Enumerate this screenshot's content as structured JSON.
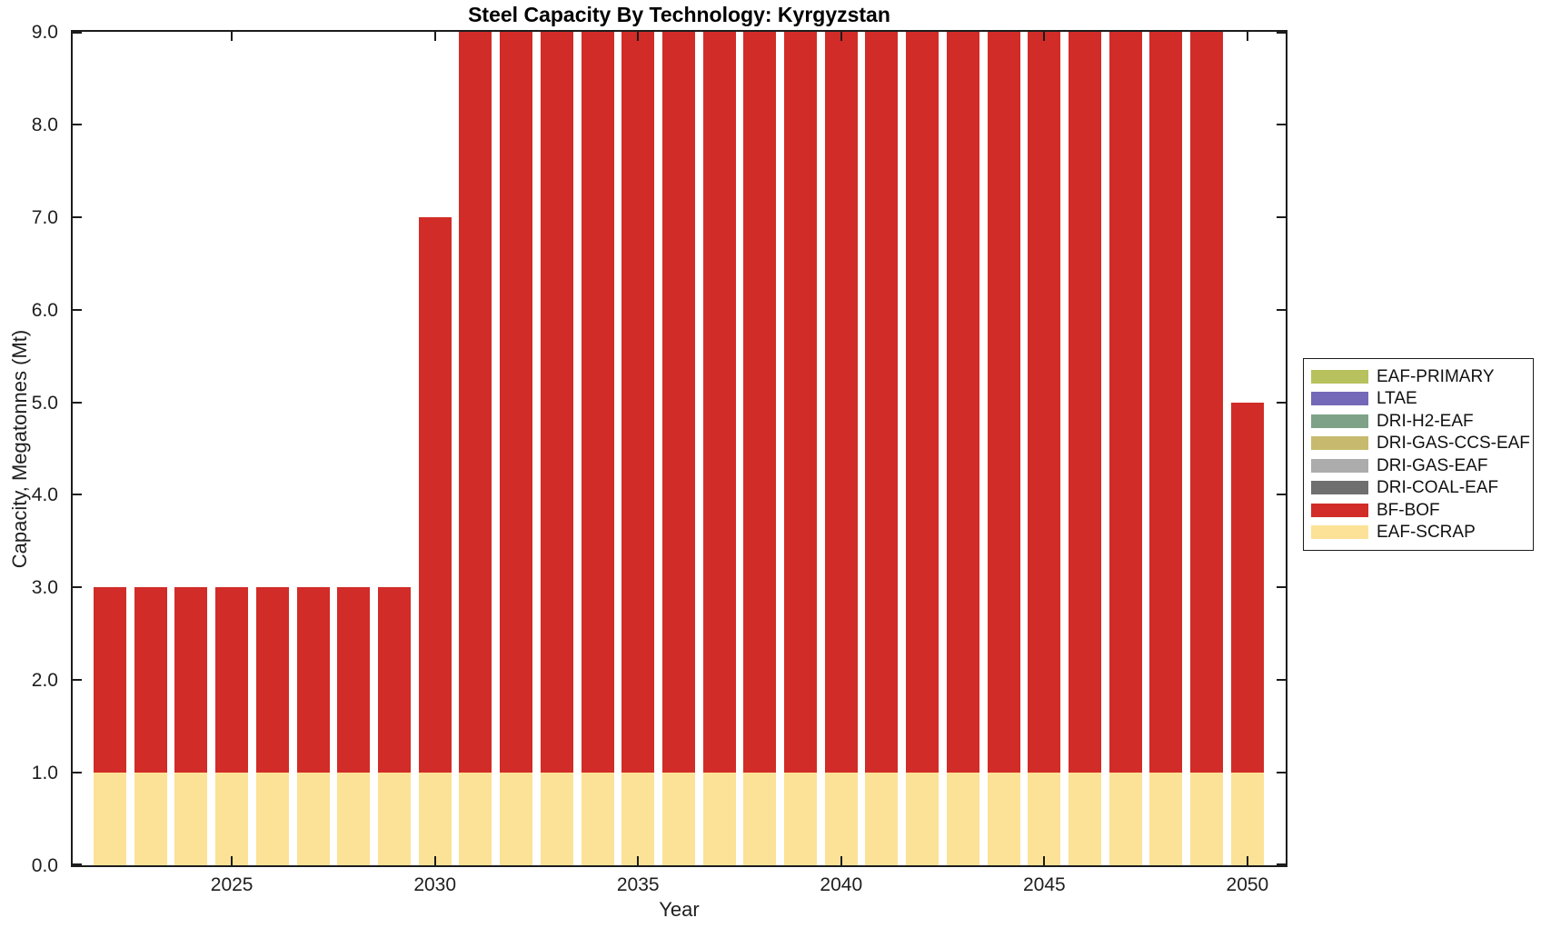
{
  "header": {
    "title": "Steel Capacity By Technology: Kyrgyzstan"
  },
  "chart_data": {
    "type": "bar",
    "stacked": true,
    "title": "Steel Capacity By Technology: Kyrgyzstan",
    "xlabel": "Year",
    "ylabel": "Capacity, Megatonnes (Mt)",
    "x": [
      2022,
      2023,
      2024,
      2025,
      2026,
      2027,
      2028,
      2029,
      2030,
      2031,
      2032,
      2033,
      2034,
      2035,
      2036,
      2037,
      2038,
      2039,
      2040,
      2041,
      2042,
      2043,
      2044,
      2045,
      2046,
      2047,
      2048,
      2049,
      2050
    ],
    "series": [
      {
        "name": "EAF-PRIMARY",
        "color": "#B7C25E",
        "values": [
          0,
          0,
          0,
          0,
          0,
          0,
          0,
          0,
          0,
          0,
          0,
          0,
          0,
          0,
          0,
          0,
          0,
          0,
          0,
          0,
          0,
          0,
          0,
          0,
          0,
          0,
          0,
          0,
          0
        ]
      },
      {
        "name": "LTAE",
        "color": "#7468B8",
        "values": [
          0,
          0,
          0,
          0,
          0,
          0,
          0,
          0,
          0,
          0,
          0,
          0,
          0,
          0,
          0,
          0,
          0,
          0,
          0,
          0,
          0,
          0,
          0,
          0,
          0,
          0,
          0,
          0,
          0
        ]
      },
      {
        "name": "DRI-H2-EAF",
        "color": "#7EA287",
        "values": [
          0,
          0,
          0,
          0,
          0,
          0,
          0,
          0,
          0,
          0,
          0,
          0,
          0,
          0,
          0,
          0,
          0,
          0,
          0,
          0,
          0,
          0,
          0,
          0,
          0,
          0,
          0,
          0,
          0
        ]
      },
      {
        "name": "DRI-GAS-CCS-EAF",
        "color": "#C7BA6E",
        "values": [
          0,
          0,
          0,
          0,
          0,
          0,
          0,
          0,
          0,
          0,
          0,
          0,
          0,
          0,
          0,
          0,
          0,
          0,
          0,
          0,
          0,
          0,
          0,
          0,
          0,
          0,
          0,
          0,
          0
        ]
      },
      {
        "name": "DRI-GAS-EAF",
        "color": "#ACACAC",
        "values": [
          0,
          0,
          0,
          0,
          0,
          0,
          0,
          0,
          0,
          0,
          0,
          0,
          0,
          0,
          0,
          0,
          0,
          0,
          0,
          0,
          0,
          0,
          0,
          0,
          0,
          0,
          0,
          0,
          0
        ]
      },
      {
        "name": "DRI-COAL-EAF",
        "color": "#6F6F6F",
        "values": [
          0,
          0,
          0,
          0,
          0,
          0,
          0,
          0,
          0,
          0,
          0,
          0,
          0,
          0,
          0,
          0,
          0,
          0,
          0,
          0,
          0,
          0,
          0,
          0,
          0,
          0,
          0,
          0,
          0
        ]
      },
      {
        "name": "BF-BOF",
        "color": "#D12C28",
        "values": [
          2,
          2,
          2,
          2,
          2,
          2,
          2,
          2,
          6,
          8,
          8,
          8,
          8,
          8,
          8,
          8,
          8,
          8,
          8,
          8,
          8,
          8,
          8,
          8,
          8,
          8,
          8,
          8,
          4
        ]
      },
      {
        "name": "EAF-SCRAP",
        "color": "#FCE296",
        "values": [
          1,
          1,
          1,
          1,
          1,
          1,
          1,
          1,
          1,
          1,
          1,
          1,
          1,
          1,
          1,
          1,
          1,
          1,
          1,
          1,
          1,
          1,
          1,
          1,
          1,
          1,
          1,
          1,
          1
        ]
      }
    ],
    "stack_order": "bottom-to-top is reverse of series list (EAF-SCRAP at bottom, BF-BOF above)",
    "totals": [
      3,
      3,
      3,
      3,
      3,
      3,
      3,
      3,
      7,
      9,
      9,
      9,
      9,
      9,
      9,
      9,
      9,
      9,
      9,
      9,
      9,
      9,
      9,
      9,
      9,
      9,
      9,
      9,
      5
    ],
    "ylim": [
      0,
      9
    ],
    "y_ticks": [
      0,
      1,
      2,
      3,
      4,
      5,
      6,
      7,
      8,
      9
    ],
    "y_tick_labels": [
      "0.0",
      "1.0",
      "2.0",
      "3.0",
      "4.0",
      "5.0",
      "6.0",
      "7.0",
      "8.0",
      "9.0"
    ],
    "x_ticks": [
      2025,
      2030,
      2035,
      2040,
      2045,
      2050
    ],
    "x_tick_labels": [
      "2025",
      "2030",
      "2035",
      "2040",
      "2045",
      "2050"
    ],
    "grid": false,
    "legend_position": "outside-right",
    "axis_color": "#1c1c1c"
  }
}
